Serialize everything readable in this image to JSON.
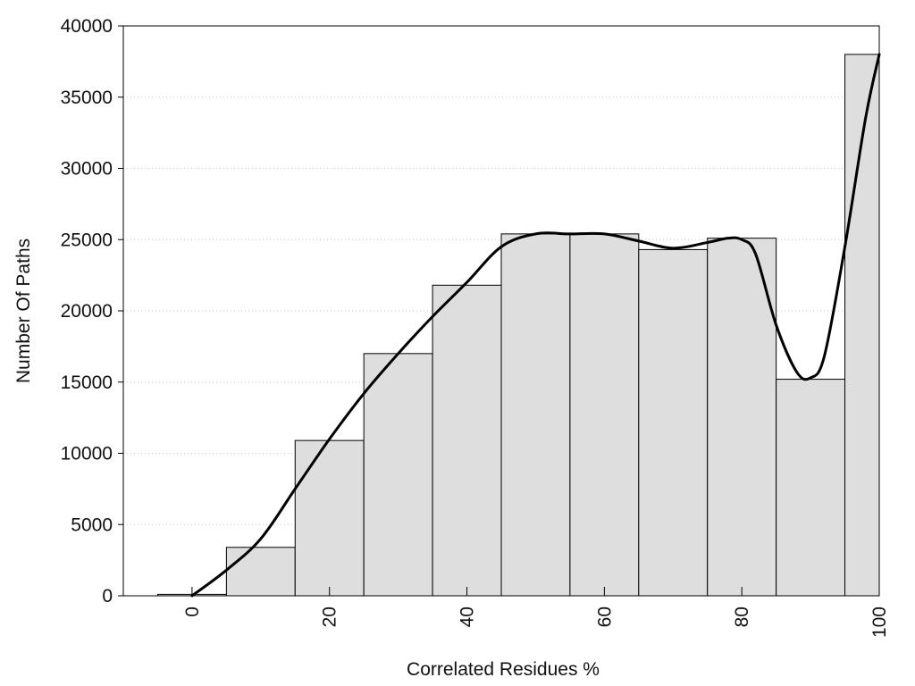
{
  "chart_data": {
    "type": "bar",
    "title": "",
    "xlabel": "Correlated Residues %",
    "ylabel": "Number Of Paths",
    "xlim": [
      -10,
      100
    ],
    "ylim": [
      0,
      40000
    ],
    "grid": {
      "y": true,
      "style": "dotted"
    },
    "bar_width": 10,
    "bar_color": "#dedede",
    "bar_edge_color": "#000000",
    "x_ticks": [
      0,
      20,
      40,
      60,
      80,
      100
    ],
    "x_tick_labels": [
      "0",
      "20",
      "40",
      "60",
      "80",
      "100"
    ],
    "y_ticks": [
      0,
      5000,
      10000,
      15000,
      20000,
      25000,
      30000,
      35000,
      40000
    ],
    "y_tick_labels": [
      "0",
      "5000",
      "10000",
      "15000",
      "20000",
      "25000",
      "30000",
      "35000",
      "40000"
    ],
    "bins": [
      0,
      10,
      20,
      30,
      40,
      50,
      60,
      70,
      80,
      90,
      100
    ],
    "values": [
      100,
      3400,
      10900,
      17000,
      21800,
      25400,
      25400,
      24300,
      25100,
      15200,
      38000
    ],
    "density_curve": {
      "color": "#000000",
      "x": [
        0,
        5,
        10,
        15,
        20,
        25,
        30,
        35,
        40,
        45,
        50,
        55,
        60,
        65,
        70,
        75,
        78,
        80,
        82,
        85,
        88,
        90,
        92,
        95,
        98,
        100
      ],
      "y": [
        0,
        1800,
        4000,
        7500,
        11000,
        14200,
        17000,
        19600,
        22000,
        24500,
        25400,
        25400,
        25400,
        24900,
        24400,
        24800,
        25100,
        25000,
        24000,
        19000,
        15700,
        15300,
        16800,
        24500,
        33500,
        38000
      ]
    }
  }
}
